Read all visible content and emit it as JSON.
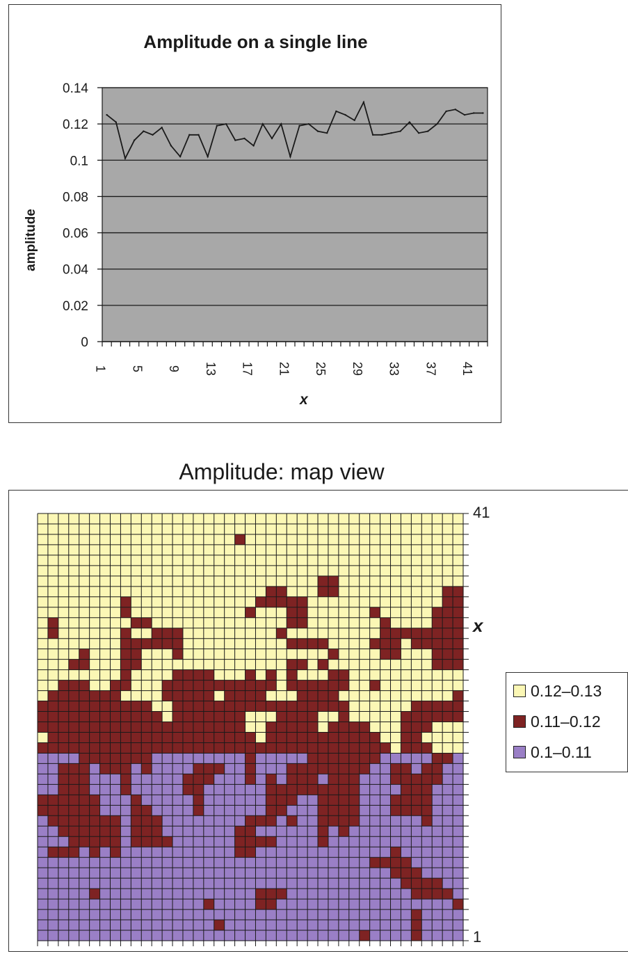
{
  "chart_data": [
    {
      "type": "line",
      "title": "Amplitude on a single line",
      "xlabel": "x",
      "ylabel": "amplitude",
      "ylim": [
        0,
        0.14
      ],
      "y_ticks": [
        "0",
        "0.02",
        "0.04",
        "0.06",
        "0.08",
        "0.1",
        "0.12",
        "0.14"
      ],
      "x_tick_labels": [
        "1",
        "5",
        "9",
        "13",
        "17",
        "21",
        "25",
        "29",
        "33",
        "37",
        "41"
      ],
      "grid": true,
      "plot_background": "#a8a8a8",
      "x": [
        1,
        2,
        3,
        4,
        5,
        6,
        7,
        8,
        9,
        10,
        11,
        12,
        13,
        14,
        15,
        16,
        17,
        18,
        19,
        20,
        21,
        22,
        23,
        24,
        25,
        26,
        27,
        28,
        29,
        30,
        31,
        32,
        33,
        34,
        35,
        36,
        37,
        38,
        39,
        40,
        41,
        42
      ],
      "series": [
        {
          "values": [
            0.125,
            0.121,
            0.101,
            0.111,
            0.116,
            0.114,
            0.118,
            0.108,
            0.102,
            0.114,
            0.114,
            0.102,
            0.119,
            0.12,
            0.111,
            0.112,
            0.108,
            0.12,
            0.112,
            0.12,
            0.102,
            0.119,
            0.12,
            0.116,
            0.115,
            0.127,
            0.125,
            0.122,
            0.132,
            0.114,
            0.114,
            0.115,
            0.116,
            0.121,
            0.115,
            0.116,
            0.12,
            0.127,
            0.128,
            0.125,
            0.126,
            0.126
          ],
          "color": "#1a1a1a"
        }
      ]
    },
    {
      "type": "heatmap",
      "title": "Amplitude: map view",
      "xlabel": "x",
      "y_axis_labels": [
        "41",
        "1"
      ],
      "legend": [
        {
          "label": "0.12–0.13",
          "color": "#fbf7b5"
        },
        {
          "label": "0.11–0.12",
          "color": "#7e2323"
        },
        {
          "label": "0.1–0.11",
          "color": "#9a7fc6"
        }
      ],
      "legend_position": "right"
    }
  ]
}
